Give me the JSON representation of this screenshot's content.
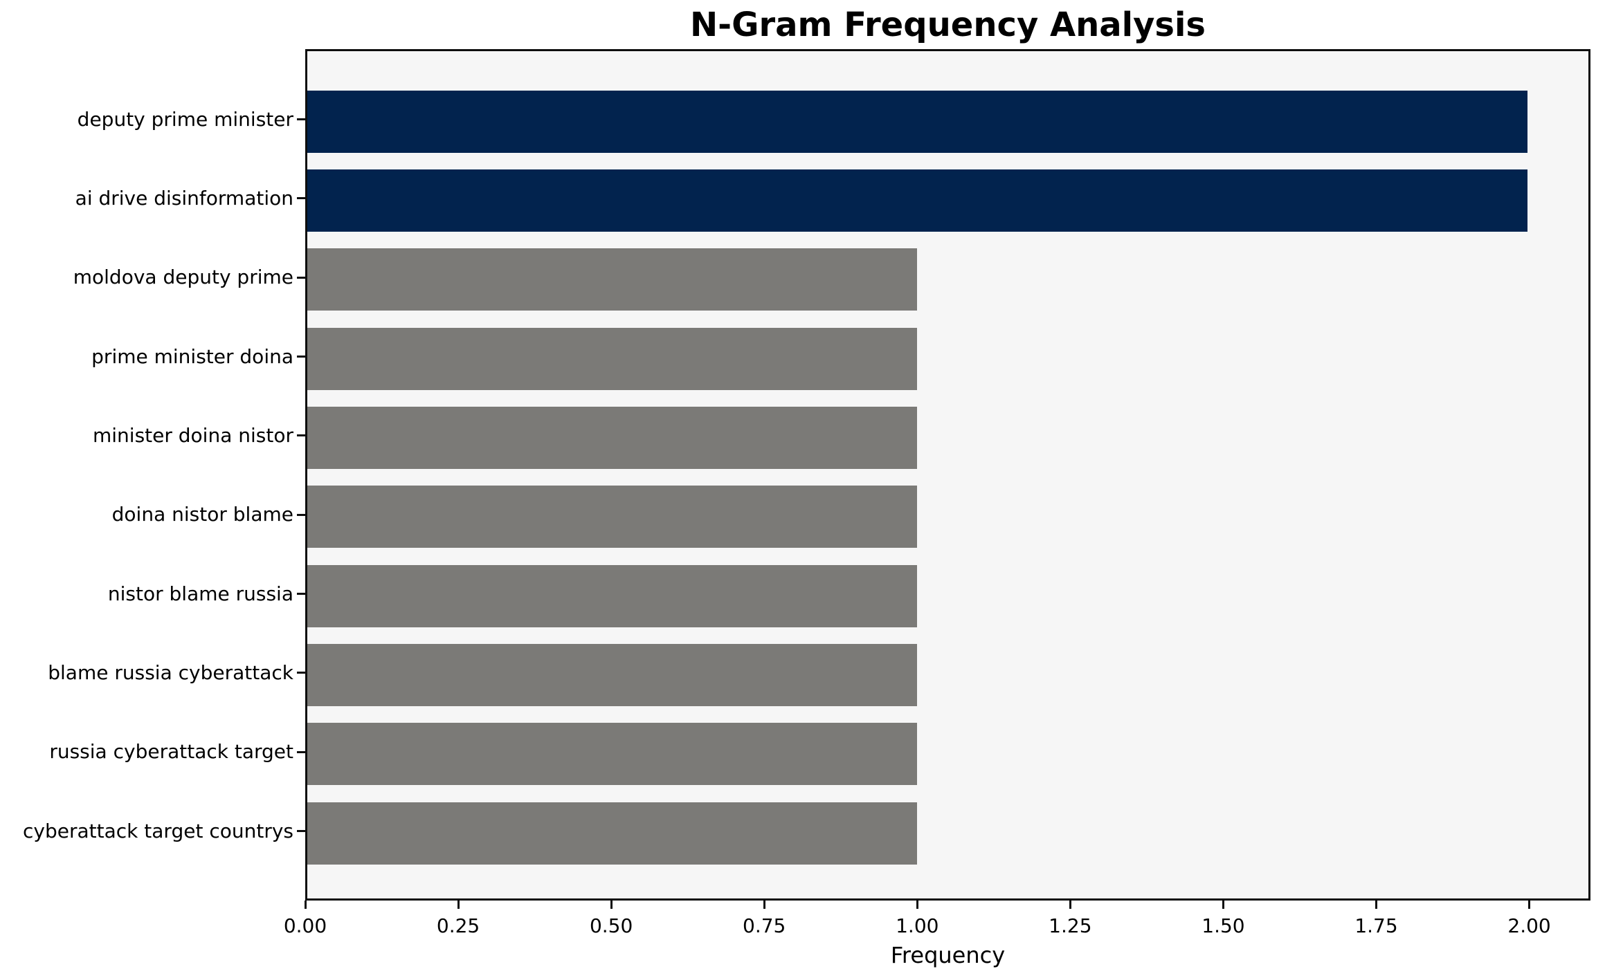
{
  "chart_data": {
    "type": "bar",
    "orientation": "horizontal",
    "title": "N-Gram Frequency Analysis",
    "xlabel": "Frequency",
    "ylabel": "",
    "categories": [
      "deputy prime minister",
      "ai drive disinformation",
      "moldova deputy prime",
      "prime minister doina",
      "minister doina nistor",
      "doina nistor blame",
      "nistor blame russia",
      "blame russia cyberattack",
      "russia cyberattack target",
      "cyberattack target countrys"
    ],
    "values": [
      2,
      2,
      1,
      1,
      1,
      1,
      1,
      1,
      1,
      1
    ],
    "xlim": [
      0,
      2.1
    ],
    "xticks": [
      0,
      0.25,
      0.5,
      0.75,
      1,
      1.25,
      1.5,
      1.75,
      2
    ],
    "xtick_labels": [
      "0.00",
      "0.25",
      "0.50",
      "0.75",
      "1.00",
      "1.25",
      "1.50",
      "1.75",
      "2.00"
    ],
    "bar_colors": [
      "#02234e",
      "#02234e",
      "#7b7a77",
      "#7b7a77",
      "#7b7a77",
      "#7b7a77",
      "#7b7a77",
      "#7b7a77",
      "#7b7a77",
      "#7b7a77"
    ],
    "colors": {
      "highlight": "#02234e",
      "default": "#7b7a77",
      "plot_background": "#f6f6f6",
      "figure_background": "#ffffff",
      "spine": "#0e0e0e",
      "text": "#000000"
    },
    "grid": false,
    "legend": null
  }
}
